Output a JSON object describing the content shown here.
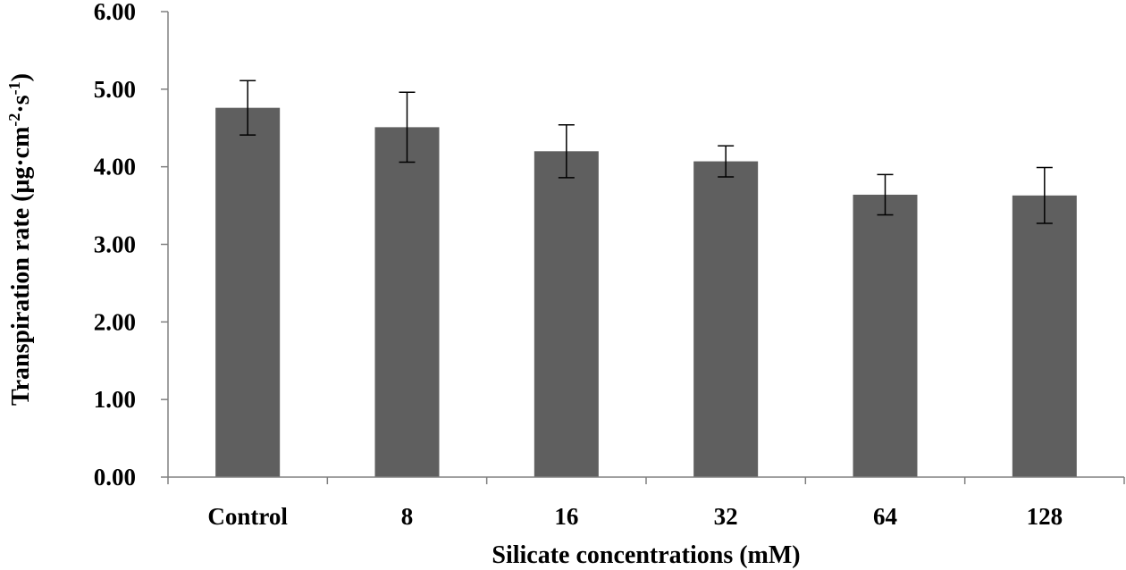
{
  "chart_data": {
    "type": "bar",
    "categories": [
      "Control",
      "8",
      "16",
      "32",
      "64",
      "128"
    ],
    "values": [
      4.76,
      4.51,
      4.2,
      4.07,
      3.64,
      3.63
    ],
    "error": [
      0.35,
      0.45,
      0.34,
      0.2,
      0.26,
      0.36
    ],
    "ylim": [
      0,
      6
    ],
    "yticks": [
      "0.00",
      "1.00",
      "2.00",
      "3.00",
      "4.00",
      "5.00",
      "6.00"
    ],
    "xlabel": "Silicate concentrations (mM)",
    "ylabel": {
      "prefix": "Transpiration  rate (μg·cm",
      "sup1": "-2",
      "mid": "·s",
      "sup2": "-1",
      "suffix": ")"
    },
    "grid": false,
    "legend": "none",
    "bar_color": "#5f5f5f",
    "axis_color": "#808080"
  }
}
